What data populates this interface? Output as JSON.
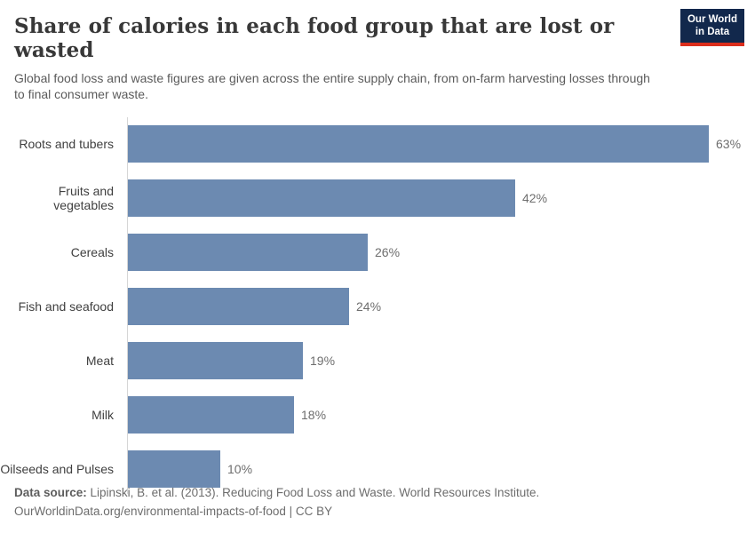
{
  "header": {
    "title": "Share of calories in each food group that are lost or wasted",
    "subtitle": "Global food loss and waste figures are given across the entire supply chain, from on-farm harvesting losses through to final consumer waste.",
    "logo": {
      "line1": "Our World",
      "line2": "in Data"
    }
  },
  "chart_data": {
    "type": "bar",
    "orientation": "horizontal",
    "title": "Share of calories in each food group that are lost or wasted",
    "categories": [
      "Roots and tubers",
      "Fruits and vegetables",
      "Cereals",
      "Fish and seafood",
      "Meat",
      "Milk",
      "Oilseeds and Pulses"
    ],
    "values": [
      63,
      42,
      26,
      24,
      19,
      18,
      10
    ],
    "value_labels": [
      "63%",
      "42%",
      "26%",
      "24%",
      "19%",
      "18%",
      "10%"
    ],
    "unit": "%",
    "xlim": [
      0,
      63
    ],
    "grid": false,
    "legend": "none"
  },
  "footer": {
    "source_label": "Data source:",
    "source_text": "Lipinski, B. et al. (2013). Reducing Food Loss and Waste. World Resources Institute.",
    "license_line": "OurWorldinData.org/environmental-impacts-of-food | CC BY"
  },
  "colors": {
    "bar": "#6c8ab1",
    "value_label": "#6e6e6e",
    "logo_bg": "#12284c",
    "logo_stripe": "#dc2e1c",
    "axis_line": "#d6d6d6"
  }
}
